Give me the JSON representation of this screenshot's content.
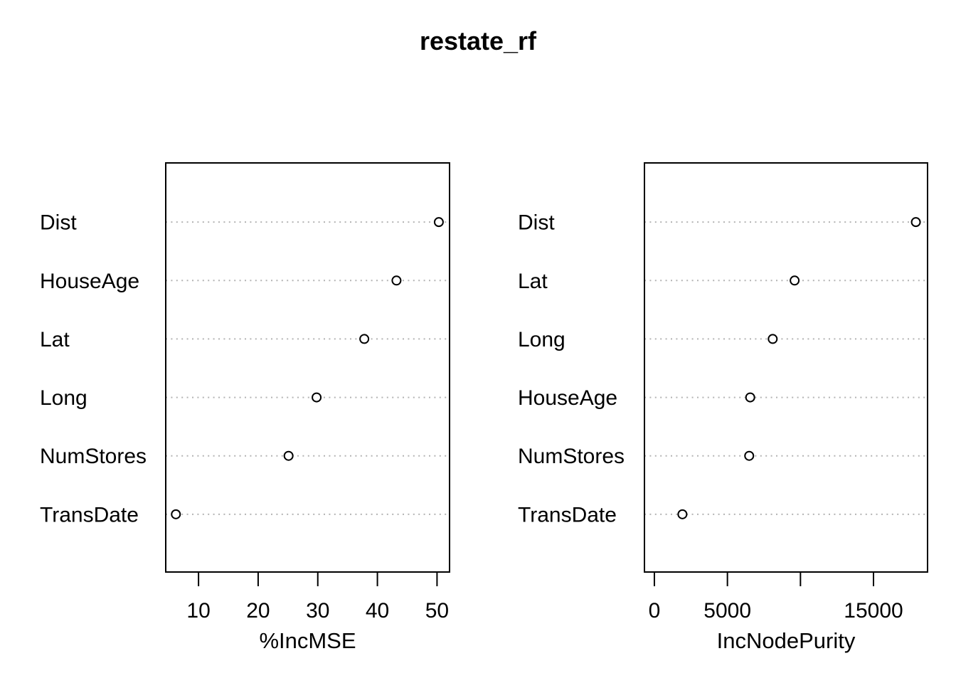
{
  "title": "restate_rf",
  "colors": {
    "background": "#ffffff",
    "foreground": "#000000",
    "gridline": "#b3b3b3"
  },
  "chart_data": [
    {
      "type": "scatter",
      "subtype": "dot-plot",
      "panel": "left",
      "xlabel": "%IncMSE",
      "categories": [
        "Dist",
        "HouseAge",
        "Lat",
        "Long",
        "NumStores",
        "TransDate"
      ],
      "values": [
        50.3,
        43.2,
        37.8,
        29.8,
        25.1,
        6.2
      ],
      "xticks": [
        10,
        20,
        30,
        40,
        50
      ],
      "xtick_labels": [
        "10",
        "20",
        "30",
        "40",
        "50"
      ],
      "xlim": [
        4.5,
        52.1
      ],
      "grid": "horizontal-dotted",
      "marker": "open-circle",
      "legend": "none"
    },
    {
      "type": "scatter",
      "subtype": "dot-plot",
      "panel": "right",
      "xlabel": "IncNodePurity",
      "categories": [
        "Dist",
        "Lat",
        "Long",
        "HouseAge",
        "NumStores",
        "TransDate"
      ],
      "values": [
        17900,
        9600,
        8100,
        6560,
        6490,
        1920
      ],
      "xticks": [
        0,
        5000,
        10000,
        15000
      ],
      "xtick_labels": [
        "0",
        "5000",
        "",
        "15000"
      ],
      "xlim": [
        -680,
        18700
      ],
      "grid": "horizontal-dotted",
      "marker": "open-circle",
      "legend": "none"
    }
  ]
}
